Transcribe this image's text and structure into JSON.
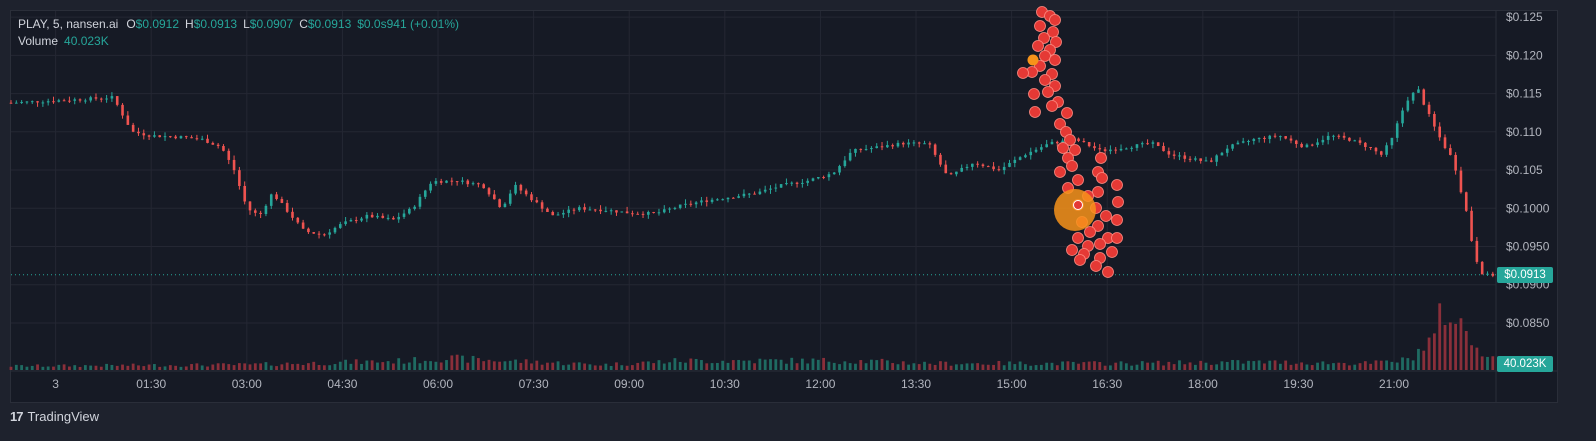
{
  "legend": {
    "symbol": "PLAY, 5, nansen.ai",
    "o_label": "O",
    "o_value": "$0.0912",
    "h_label": "H",
    "h_value": "$0.0913",
    "l_label": "L",
    "l_value": "$0.0907",
    "c_label": "C",
    "c_value": "$0.0913",
    "change": "$0.0s941 (+0.01%)",
    "volume_label": "Volume",
    "volume_value": "40.023K"
  },
  "last_price_label": "$0.0913",
  "last_volume_label": "40.023K",
  "branding": {
    "logo": "17",
    "name": "TradingView"
  },
  "colors": {
    "up": "#26a69a",
    "down": "#ef5350",
    "volume_up": "#1f6b62",
    "volume_down": "#8a2f3a",
    "bubble": "#e53935",
    "event": "#f7931a"
  },
  "chart_data": {
    "type": "candlestick",
    "interval": "5",
    "y_ticks": [
      "$0.125",
      "$0.120",
      "$0.115",
      "$0.110",
      "$0.105",
      "$0.1000",
      "$0.0950",
      "$0.0900",
      "$0.0850"
    ],
    "y_tick_values": [
      0.125,
      0.12,
      0.115,
      0.11,
      0.105,
      0.1,
      0.095,
      0.09,
      0.085
    ],
    "ylim": [
      0.0795,
      0.1258
    ],
    "x_ticks": [
      "3",
      "01:30",
      "03:00",
      "04:30",
      "06:00",
      "07:30",
      "09:00",
      "10:30",
      "12:00",
      "13:30",
      "15:00",
      "16:30",
      "18:00",
      "19:30",
      "21:00"
    ],
    "x_tick_hours": [
      0,
      1.5,
      3,
      4.5,
      6,
      7.5,
      9,
      10.5,
      12,
      13.5,
      15,
      16.5,
      18,
      19.5,
      21
    ],
    "x_range_hours": [
      -0.7,
      22.6
    ],
    "last_price": 0.0913,
    "price_anchors": [
      [
        -0.7,
        0.1138
      ],
      [
        0.3,
        0.1142
      ],
      [
        0.9,
        0.1145
      ],
      [
        1.0,
        0.113
      ],
      [
        1.2,
        0.11
      ],
      [
        1.5,
        0.1095
      ],
      [
        2.0,
        0.1093
      ],
      [
        2.3,
        0.109
      ],
      [
        2.6,
        0.108
      ],
      [
        2.8,
        0.105
      ],
      [
        3.0,
        0.1
      ],
      [
        3.2,
        0.099
      ],
      [
        3.4,
        0.102
      ],
      [
        3.6,
        0.1
      ],
      [
        3.9,
        0.097
      ],
      [
        4.2,
        0.0965
      ],
      [
        4.5,
        0.098
      ],
      [
        4.9,
        0.099
      ],
      [
        5.3,
        0.0985
      ],
      [
        5.6,
        0.1
      ],
      [
        5.9,
        0.1035
      ],
      [
        6.3,
        0.1036
      ],
      [
        6.7,
        0.103
      ],
      [
        7.0,
        0.1
      ],
      [
        7.2,
        0.103
      ],
      [
        7.5,
        0.101
      ],
      [
        7.8,
        0.099
      ],
      [
        8.2,
        0.1
      ],
      [
        8.6,
        0.0998
      ],
      [
        9.0,
        0.0994
      ],
      [
        9.4,
        0.0993
      ],
      [
        9.8,
        0.1003
      ],
      [
        10.2,
        0.101
      ],
      [
        10.6,
        0.1015
      ],
      [
        11.0,
        0.102
      ],
      [
        11.4,
        0.103
      ],
      [
        11.8,
        0.1036
      ],
      [
        12.2,
        0.1046
      ],
      [
        12.5,
        0.1075
      ],
      [
        12.9,
        0.108
      ],
      [
        13.3,
        0.1085
      ],
      [
        13.7,
        0.1084
      ],
      [
        14.0,
        0.104
      ],
      [
        14.4,
        0.106
      ],
      [
        14.8,
        0.105
      ],
      [
        15.2,
        0.107
      ],
      [
        15.6,
        0.1085
      ],
      [
        16.0,
        0.109
      ],
      [
        16.4,
        0.1075
      ],
      [
        16.8,
        0.108
      ],
      [
        17.2,
        0.1085
      ],
      [
        17.5,
        0.107
      ],
      [
        17.8,
        0.1065
      ],
      [
        18.1,
        0.106
      ],
      [
        18.4,
        0.108
      ],
      [
        18.8,
        0.109
      ],
      [
        19.2,
        0.1095
      ],
      [
        19.6,
        0.108
      ],
      [
        20.0,
        0.1095
      ],
      [
        20.3,
        0.109
      ],
      [
        20.6,
        0.108
      ],
      [
        20.8,
        0.107
      ],
      [
        21.0,
        0.1095
      ],
      [
        21.2,
        0.1145
      ],
      [
        21.4,
        0.1155
      ],
      [
        21.6,
        0.111
      ],
      [
        21.8,
        0.108
      ],
      [
        21.95,
        0.106
      ],
      [
        22.1,
        0.101
      ],
      [
        22.25,
        0.0945
      ],
      [
        22.4,
        0.0912
      ],
      [
        22.6,
        0.0913
      ]
    ],
    "volume_profile": [
      [
        -0.7,
        0.06
      ],
      [
        3.0,
        0.08
      ],
      [
        5.6,
        0.14
      ],
      [
        6.0,
        0.18
      ],
      [
        8.6,
        0.08
      ],
      [
        9.8,
        0.14
      ],
      [
        12.5,
        0.14
      ],
      [
        13.7,
        0.1
      ],
      [
        16.8,
        0.1
      ],
      [
        18.8,
        0.12
      ],
      [
        20.6,
        0.1
      ],
      [
        21.2,
        0.15
      ],
      [
        21.4,
        0.3
      ],
      [
        21.6,
        0.45
      ],
      [
        21.8,
        0.95
      ],
      [
        21.95,
        0.75
      ],
      [
        22.1,
        0.6
      ],
      [
        22.25,
        0.4
      ],
      [
        22.4,
        0.3
      ],
      [
        22.6,
        0.15
      ]
    ]
  }
}
